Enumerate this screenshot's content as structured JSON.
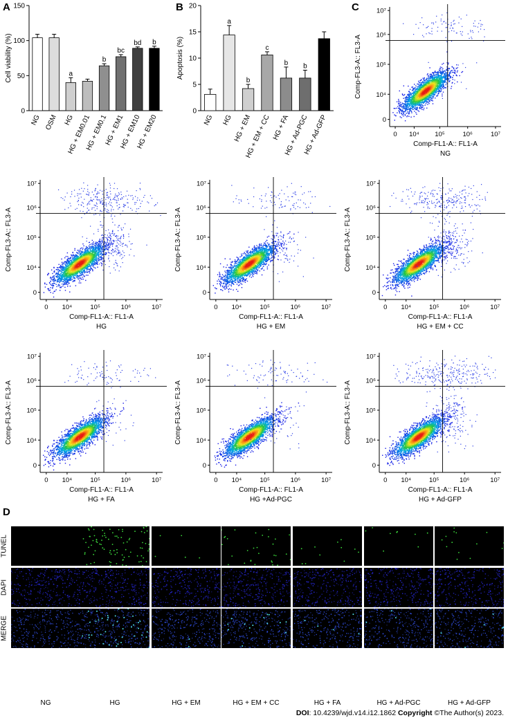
{
  "panels": {
    "a": "A",
    "b": "B",
    "c": "C",
    "d": "D"
  },
  "chart_data": [
    {
      "type": "bar",
      "panel": "A",
      "ylabel": "Cell viability (%)",
      "ylim": [
        0,
        150
      ],
      "yticks": [
        "0",
        "50",
        "100",
        "150"
      ],
      "categories": [
        "NG",
        "OSM",
        "HG",
        "HG + EM0.01",
        "HG + EM0.1",
        "HG + EM1",
        "HG + EM10",
        "HG + EM20"
      ],
      "values": [
        104,
        104,
        40,
        42,
        64,
        77,
        89,
        89
      ],
      "errors": [
        5,
        5,
        7,
        3,
        3,
        3,
        2,
        3
      ],
      "labels": [
        "",
        "",
        "a",
        "",
        "b",
        "bc",
        "bd",
        "b"
      ],
      "colors": [
        "#ffffff",
        "#dddddd",
        "#cfcfcf",
        "#bdbdbd",
        "#8f8f8f",
        "#707070",
        "#404040",
        "#000000"
      ]
    },
    {
      "type": "bar",
      "panel": "B",
      "ylabel": "Apoptosis (%)",
      "ylim": [
        0,
        20
      ],
      "yticks": [
        "0",
        "5",
        "10",
        "15",
        "20"
      ],
      "categories": [
        "NG",
        "HG",
        "HG + EM",
        "HG + EM + CC",
        "HG + FA",
        "HG + Ad-PGC",
        "HG + Ad-GFP"
      ],
      "values": [
        3.1,
        14.4,
        4.2,
        10.6,
        6.2,
        6.2,
        13.7
      ],
      "errors": [
        1.0,
        1.8,
        0.8,
        0.6,
        2.1,
        1.5,
        1.3
      ],
      "labels": [
        "",
        "a",
        "b",
        "c",
        "b",
        "b",
        ""
      ],
      "colors": [
        "#ffffff",
        "#e6e6e6",
        "#cfcfcf",
        "#a8a8a8",
        "#8c8c8c",
        "#6e6e6e",
        "#000000"
      ]
    }
  ],
  "flow": {
    "xlabel": "Comp-FL1-A:: FL1-A",
    "ylabel": "Comp-FL3-A:: FL3-A",
    "xticks": [
      "0",
      "10⁴",
      "10⁵",
      "10⁶",
      "10⁷"
    ],
    "yticks": [
      "0",
      "10⁴",
      "10⁵",
      "10⁶",
      "10⁷"
    ],
    "plots": [
      {
        "label": "NG",
        "upper": 0.35,
        "right": 0.05
      },
      {
        "label": "HG",
        "upper": 1.0,
        "right": 0.6
      },
      {
        "label": "HG + EM",
        "upper": 0.35,
        "right": 0.25
      },
      {
        "label": "HG + EM + CC",
        "upper": 0.9,
        "right": 0.55
      },
      {
        "label": "HG + FA",
        "upper": 0.35,
        "right": 0.15
      },
      {
        "label": "HG +Ad-PGC",
        "upper": 0.35,
        "right": 0.15
      },
      {
        "label": "HG + Ad-GFP",
        "upper": 1.0,
        "right": 0.55
      }
    ]
  },
  "tunel": {
    "rows": [
      "TUNEL",
      "DAPI",
      "MERGE"
    ],
    "columns": [
      "NG",
      "HG",
      "HG + EM",
      "HG + EM + CC",
      "HG + FA",
      "HG + Ad-PGC",
      "HG + Ad-GFP"
    ],
    "tunel_density": [
      0.0,
      1.0,
      0.05,
      0.35,
      0.12,
      0.1,
      0.15
    ]
  },
  "footer": {
    "doi_label": "DOI",
    "doi": ": 10.4239/wjd.v14.i12.1862 ",
    "copyright_label": "Copyright",
    "copyright": " ©The Author(s) 2023."
  }
}
